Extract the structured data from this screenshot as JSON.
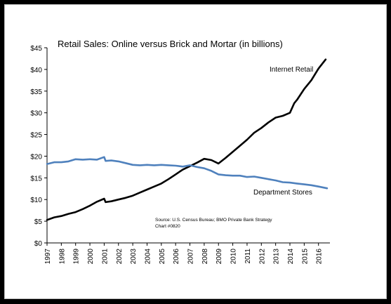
{
  "chart_data": {
    "type": "line",
    "title": "Retail Sales: Online versus Brick and Mortar (in billions)",
    "xlabel": "",
    "ylabel": "",
    "ylim": [
      0,
      45
    ],
    "xlim": [
      1997,
      2016.8
    ],
    "y_ticks": [
      0,
      5,
      10,
      15,
      20,
      25,
      30,
      35,
      40,
      45
    ],
    "y_tick_labels": [
      "$0",
      "$5",
      "$10",
      "$15",
      "$20",
      "$25",
      "$30",
      "$35",
      "$40",
      "$45"
    ],
    "x_tick_labels": [
      "1997",
      "1998",
      "1999",
      "2000",
      "2001",
      "2002",
      "2003",
      "2004",
      "2005",
      "2006",
      "2007",
      "2008",
      "2009",
      "2010",
      "2011",
      "2012",
      "2013",
      "2014",
      "2015",
      "2016"
    ],
    "grid": false,
    "legend": "none",
    "annotations": [
      "Internet Retail",
      "Department Stores"
    ],
    "source_note": [
      "Source: U.S. Census Bureau; BMO Private Bank Strategy",
      "Chart #0820"
    ],
    "series": [
      {
        "name": "Internet Retail",
        "color": "#000000",
        "points": [
          [
            1997.0,
            5.3
          ],
          [
            1997.5,
            5.9
          ],
          [
            1998.0,
            6.2
          ],
          [
            1998.5,
            6.7
          ],
          [
            1999.0,
            7.1
          ],
          [
            1999.5,
            7.8
          ],
          [
            2000.0,
            8.6
          ],
          [
            2000.5,
            9.5
          ],
          [
            2001.0,
            10.2
          ],
          [
            2001.1,
            9.4
          ],
          [
            2001.5,
            9.6
          ],
          [
            2002.0,
            10.0
          ],
          [
            2002.5,
            10.4
          ],
          [
            2003.0,
            10.9
          ],
          [
            2003.5,
            11.6
          ],
          [
            2004.0,
            12.3
          ],
          [
            2004.5,
            13.0
          ],
          [
            2005.0,
            13.7
          ],
          [
            2005.5,
            14.7
          ],
          [
            2006.0,
            15.8
          ],
          [
            2006.5,
            16.9
          ],
          [
            2007.0,
            17.7
          ],
          [
            2007.5,
            18.5
          ],
          [
            2008.0,
            19.4
          ],
          [
            2008.5,
            19.1
          ],
          [
            2009.0,
            18.3
          ],
          [
            2009.5,
            19.6
          ],
          [
            2010.0,
            21.0
          ],
          [
            2010.5,
            22.4
          ],
          [
            2011.0,
            23.8
          ],
          [
            2011.5,
            25.4
          ],
          [
            2012.0,
            26.5
          ],
          [
            2012.5,
            27.8
          ],
          [
            2013.0,
            28.9
          ],
          [
            2013.5,
            29.3
          ],
          [
            2014.0,
            30.0
          ],
          [
            2014.3,
            32.2
          ],
          [
            2014.5,
            33.0
          ],
          [
            2015.0,
            35.5
          ],
          [
            2015.5,
            37.5
          ],
          [
            2016.0,
            40.2
          ],
          [
            2016.5,
            42.3
          ]
        ]
      },
      {
        "name": "Department Stores",
        "color": "#4f81bd",
        "points": [
          [
            1997.0,
            18.2
          ],
          [
            1997.5,
            18.6
          ],
          [
            1998.0,
            18.6
          ],
          [
            1998.5,
            18.8
          ],
          [
            1999.0,
            19.3
          ],
          [
            1999.5,
            19.2
          ],
          [
            2000.0,
            19.3
          ],
          [
            2000.5,
            19.2
          ],
          [
            2001.0,
            19.8
          ],
          [
            2001.1,
            18.9
          ],
          [
            2001.5,
            19.0
          ],
          [
            2002.0,
            18.8
          ],
          [
            2002.5,
            18.4
          ],
          [
            2003.0,
            18.0
          ],
          [
            2003.5,
            17.9
          ],
          [
            2004.0,
            18.0
          ],
          [
            2004.5,
            17.9
          ],
          [
            2005.0,
            18.0
          ],
          [
            2005.5,
            17.9
          ],
          [
            2006.0,
            17.8
          ],
          [
            2006.5,
            17.6
          ],
          [
            2007.0,
            17.9
          ],
          [
            2007.5,
            17.5
          ],
          [
            2008.0,
            17.2
          ],
          [
            2008.5,
            16.6
          ],
          [
            2009.0,
            15.8
          ],
          [
            2009.5,
            15.6
          ],
          [
            2010.0,
            15.5
          ],
          [
            2010.5,
            15.5
          ],
          [
            2011.0,
            15.2
          ],
          [
            2011.5,
            15.3
          ],
          [
            2012.0,
            15.0
          ],
          [
            2012.5,
            14.7
          ],
          [
            2013.0,
            14.4
          ],
          [
            2013.5,
            14.0
          ],
          [
            2014.0,
            13.9
          ],
          [
            2014.5,
            13.7
          ],
          [
            2015.0,
            13.5
          ],
          [
            2015.5,
            13.3
          ],
          [
            2016.0,
            13.0
          ],
          [
            2016.6,
            12.6
          ]
        ]
      }
    ]
  }
}
